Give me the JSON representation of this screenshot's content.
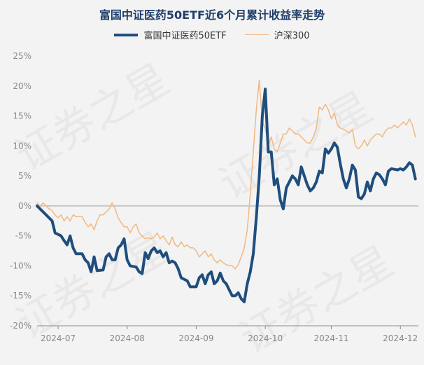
{
  "title": "富国中证医药50ETF近6个月累计收益率走势",
  "watermark_text": "证券之星",
  "colors": {
    "title": "#1f3e6b",
    "series_primary": "#1f4e7d",
    "series_secondary": "#f2b880",
    "zero_line": "#c8c8c8",
    "tick_text": "#888888",
    "background": "#f3f3f3"
  },
  "chart_data": {
    "type": "line",
    "title": "富国中证医药50ETF近6个月累计收益率走势",
    "xlabel": "",
    "ylabel": "",
    "ylim": [
      -20,
      25
    ],
    "y_ticks": [
      -20,
      -15,
      -10,
      -5,
      0,
      5,
      10,
      15,
      20,
      25
    ],
    "y_tick_labels": [
      "-20%",
      "-15%",
      "-10%",
      "-5%",
      "0%",
      "5%",
      "10%",
      "15%",
      "20%",
      "25%"
    ],
    "x_tick_labels": [
      "2024-07",
      "2024-08",
      "2024-09",
      "2024-10",
      "2024-11",
      "2024-12"
    ],
    "x_tick_positions": [
      7,
      30,
      53,
      76,
      98,
      121
    ],
    "x_count": 128,
    "grid": false,
    "legend_position": "top",
    "series": [
      {
        "name": "富国中证医药50ETF",
        "points": [
          [
            0,
            0.0
          ],
          [
            2,
            -1.0
          ],
          [
            5,
            -2.5
          ],
          [
            6,
            -4.5
          ],
          [
            8,
            -5.0
          ],
          [
            9,
            -5.8
          ],
          [
            10,
            -6.5
          ],
          [
            11,
            -5.0
          ],
          [
            12,
            -7.0
          ],
          [
            13,
            -8.0
          ],
          [
            15,
            -8.0
          ],
          [
            16,
            -9.0
          ],
          [
            17,
            -9.5
          ],
          [
            18,
            -11.0
          ],
          [
            19,
            -8.5
          ],
          [
            20,
            -10.8
          ],
          [
            22,
            -10.7
          ],
          [
            23,
            -8.5
          ],
          [
            24,
            -8.0
          ],
          [
            25,
            -9.0
          ],
          [
            26,
            -9.0
          ],
          [
            27,
            -7.0
          ],
          [
            28,
            -6.5
          ],
          [
            29,
            -5.5
          ],
          [
            30,
            -9.0
          ],
          [
            31,
            -10.0
          ],
          [
            33,
            -10.2
          ],
          [
            34,
            -11.0
          ],
          [
            35,
            -11.3
          ],
          [
            36,
            -7.8
          ],
          [
            37,
            -8.8
          ],
          [
            38,
            -7.5
          ],
          [
            39,
            -7.0
          ],
          [
            40,
            -7.8
          ],
          [
            41,
            -7.5
          ],
          [
            42,
            -8.5
          ],
          [
            43,
            -7.8
          ],
          [
            44,
            -9.5
          ],
          [
            45,
            -9.2
          ],
          [
            46,
            -9.5
          ],
          [
            47,
            -10.5
          ],
          [
            48,
            -12.0
          ],
          [
            50,
            -12.5
          ],
          [
            51,
            -13.5
          ],
          [
            53,
            -13.5
          ],
          [
            54,
            -12.0
          ],
          [
            55,
            -11.5
          ],
          [
            56,
            -13.0
          ],
          [
            57,
            -11.5
          ],
          [
            58,
            -11.0
          ],
          [
            59,
            -13.0
          ],
          [
            60,
            -12.5
          ],
          [
            61,
            -11.2
          ],
          [
            62,
            -12.5
          ],
          [
            63,
            -13.0
          ],
          [
            64,
            -14.0
          ],
          [
            65,
            -15.0
          ],
          [
            66,
            -15.0
          ],
          [
            67,
            -14.5
          ],
          [
            68,
            -15.5
          ],
          [
            69,
            -16.0
          ],
          [
            70,
            -13.0
          ],
          [
            71,
            -11.0
          ],
          [
            72,
            -8.0
          ],
          [
            73,
            -2.0
          ],
          [
            74,
            5.0
          ],
          [
            75,
            15.0
          ],
          [
            76,
            19.5
          ],
          [
            77,
            9.0
          ],
          [
            78,
            9.0
          ],
          [
            79,
            3.5
          ],
          [
            80,
            4.5
          ],
          [
            81,
            1.0
          ],
          [
            82,
            -0.5
          ],
          [
            83,
            3.0
          ],
          [
            84,
            4.0
          ],
          [
            85,
            5.0
          ],
          [
            86,
            4.5
          ],
          [
            87,
            3.5
          ],
          [
            88,
            6.5
          ],
          [
            89,
            5.0
          ],
          [
            90,
            3.5
          ],
          [
            91,
            2.5
          ],
          [
            92,
            3.0
          ],
          [
            93,
            4.0
          ],
          [
            94,
            5.8
          ],
          [
            95,
            5.5
          ],
          [
            96,
            9.5
          ],
          [
            97,
            8.8
          ],
          [
            98,
            9.5
          ],
          [
            99,
            10.5
          ],
          [
            100,
            9.8
          ],
          [
            101,
            7.0
          ],
          [
            102,
            4.5
          ],
          [
            103,
            3.0
          ],
          [
            104,
            4.5
          ],
          [
            105,
            6.8
          ],
          [
            106,
            6.0
          ],
          [
            107,
            1.5
          ],
          [
            108,
            1.2
          ],
          [
            109,
            2.0
          ],
          [
            110,
            4.0
          ],
          [
            111,
            2.5
          ],
          [
            112,
            4.5
          ],
          [
            113,
            5.5
          ],
          [
            114,
            5.2
          ],
          [
            115,
            4.5
          ],
          [
            116,
            3.5
          ],
          [
            117,
            5.8
          ],
          [
            118,
            6.2
          ],
          [
            120,
            6.0
          ],
          [
            121,
            6.2
          ],
          [
            122,
            6.0
          ],
          [
            123,
            6.5
          ],
          [
            124,
            7.2
          ],
          [
            125,
            6.8
          ],
          [
            126,
            4.5
          ]
        ]
      },
      {
        "name": "沪深300",
        "points": [
          [
            0,
            0.5
          ],
          [
            1,
            0.0
          ],
          [
            2,
            0.5
          ],
          [
            3,
            0.0
          ],
          [
            4,
            -0.5
          ],
          [
            5,
            -0.8
          ],
          [
            6,
            -1.5
          ],
          [
            7,
            -2.0
          ],
          [
            8,
            -1.5
          ],
          [
            9,
            -2.5
          ],
          [
            10,
            -1.8
          ],
          [
            11,
            -2.5
          ],
          [
            12,
            -1.5
          ],
          [
            13,
            -1.8
          ],
          [
            15,
            -1.8
          ],
          [
            16,
            -2.8
          ],
          [
            17,
            -3.5
          ],
          [
            18,
            -3.0
          ],
          [
            19,
            -4.0
          ],
          [
            20,
            -2.5
          ],
          [
            21,
            -1.5
          ],
          [
            22,
            -1.5
          ],
          [
            23,
            -1.0
          ],
          [
            24,
            -0.5
          ],
          [
            25,
            0.5
          ],
          [
            26,
            -0.5
          ],
          [
            27,
            -2.0
          ],
          [
            28,
            -2.8
          ],
          [
            29,
            -3.5
          ],
          [
            30,
            -3.5
          ],
          [
            31,
            -4.5
          ],
          [
            32,
            -3.5
          ],
          [
            33,
            -3.0
          ],
          [
            34,
            -4.5
          ],
          [
            35,
            -5.0
          ],
          [
            36,
            -5.5
          ],
          [
            37,
            -5.3
          ],
          [
            38,
            -5.5
          ],
          [
            39,
            -5.2
          ],
          [
            40,
            -4.5
          ],
          [
            41,
            -5.5
          ],
          [
            42,
            -5.0
          ],
          [
            43,
            -5.8
          ],
          [
            44,
            -6.5
          ],
          [
            45,
            -5.2
          ],
          [
            46,
            -6.5
          ],
          [
            47,
            -6.8
          ],
          [
            48,
            -6.0
          ],
          [
            49,
            -6.8
          ],
          [
            50,
            -6.5
          ],
          [
            51,
            -7.0
          ],
          [
            52,
            -7.0
          ],
          [
            53,
            -7.5
          ],
          [
            54,
            -8.5
          ],
          [
            55,
            -8.0
          ],
          [
            56,
            -7.5
          ],
          [
            57,
            -8.5
          ],
          [
            58,
            -8.0
          ],
          [
            59,
            -9.0
          ],
          [
            60,
            -9.5
          ],
          [
            61,
            -9.0
          ],
          [
            62,
            -9.5
          ],
          [
            63,
            -9.8
          ],
          [
            64,
            -10.0
          ],
          [
            65,
            -10.0
          ],
          [
            66,
            -10.5
          ],
          [
            67,
            -9.8
          ],
          [
            68,
            -8.5
          ],
          [
            69,
            -7.0
          ],
          [
            70,
            -4.0
          ],
          [
            71,
            2.0
          ],
          [
            72,
            9.0
          ],
          [
            73,
            16.0
          ],
          [
            74,
            21.0
          ],
          [
            75,
            14.0
          ],
          [
            76,
            13.0
          ],
          [
            77,
            10.0
          ],
          [
            78,
            11.5
          ],
          [
            79,
            9.5
          ],
          [
            80,
            9.0
          ],
          [
            81,
            10.5
          ],
          [
            82,
            12.0
          ],
          [
            83,
            12.0
          ],
          [
            84,
            13.0
          ],
          [
            85,
            12.5
          ],
          [
            86,
            12.0
          ],
          [
            87,
            12.0
          ],
          [
            88,
            11.5
          ],
          [
            89,
            11.0
          ],
          [
            90,
            10.5
          ],
          [
            91,
            10.5
          ],
          [
            92,
            11.5
          ],
          [
            93,
            13.0
          ],
          [
            94,
            16.5
          ],
          [
            95,
            16.0
          ],
          [
            96,
            17.0
          ],
          [
            97,
            16.0
          ],
          [
            98,
            14.5
          ],
          [
            99,
            15.5
          ],
          [
            100,
            13.5
          ],
          [
            101,
            13.0
          ],
          [
            102,
            12.8
          ],
          [
            103,
            12.5
          ],
          [
            104,
            12.2
          ],
          [
            105,
            12.8
          ],
          [
            106,
            10.0
          ],
          [
            107,
            9.5
          ],
          [
            108,
            10.0
          ],
          [
            109,
            11.0
          ],
          [
            110,
            10.0
          ],
          [
            111,
            11.0
          ],
          [
            112,
            11.5
          ],
          [
            113,
            12.0
          ],
          [
            114,
            12.0
          ],
          [
            115,
            11.5
          ],
          [
            116,
            12.5
          ],
          [
            117,
            13.0
          ],
          [
            118,
            13.0
          ],
          [
            119,
            13.5
          ],
          [
            120,
            13.0
          ],
          [
            121,
            13.5
          ],
          [
            122,
            14.0
          ],
          [
            123,
            13.5
          ],
          [
            124,
            14.5
          ],
          [
            125,
            13.5
          ],
          [
            126,
            11.5
          ]
        ]
      }
    ]
  }
}
